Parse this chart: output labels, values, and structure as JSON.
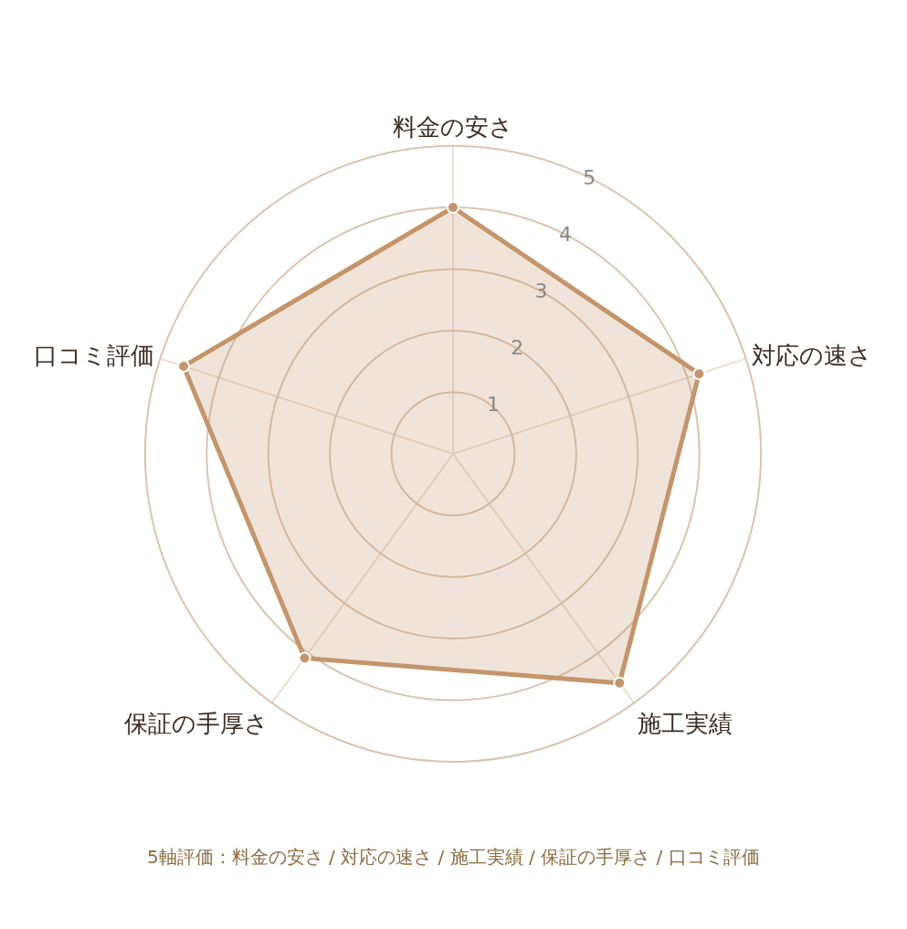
{
  "chart_data": {
    "type": "radar",
    "categories": [
      "料金の安さ",
      "対応の速さ",
      "施工実績",
      "保証の手厚さ",
      "口コミ評価"
    ],
    "series": [
      {
        "color": "#c4956a",
        "values": [
          4.0,
          4.2,
          4.6,
          4.1,
          4.6
        ]
      }
    ],
    "ylim": [
      0,
      5
    ],
    "yticks": [
      1,
      2,
      3,
      4,
      5
    ],
    "grid": true,
    "marker": "circle",
    "annotations": [
      "5軸評価：料金の安さ / 対応の速さ / 施工実績 / 保証の手厚さ / 口コミ評価"
    ]
  }
}
